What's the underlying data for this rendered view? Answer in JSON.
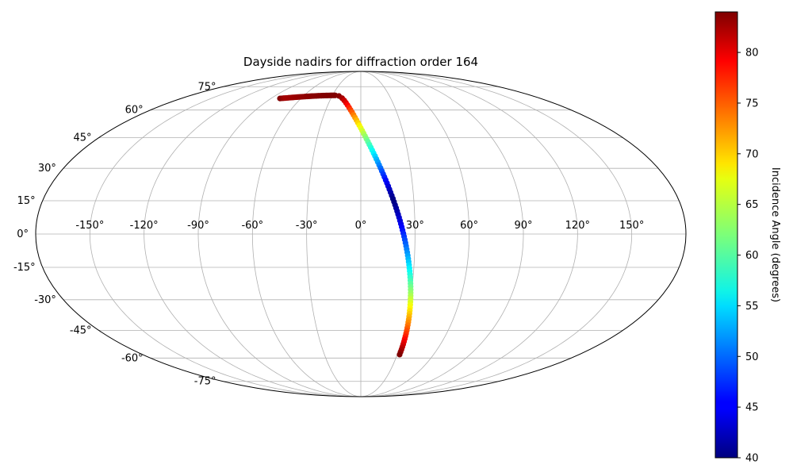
{
  "chart_data": {
    "type": "scatter",
    "projection": "mollweide",
    "title": "Dayside nadirs for diffraction order 164",
    "grid": true,
    "x_tick_labels": [
      "-150°",
      "-120°",
      "-90°",
      "-60°",
      "-30°",
      "0°",
      "30°",
      "60°",
      "90°",
      "120°",
      "150°"
    ],
    "x_ticks_deg": [
      -150,
      -120,
      -90,
      -60,
      -30,
      0,
      30,
      60,
      90,
      120,
      150
    ],
    "y_tick_labels": [
      "-75°",
      "-60°",
      "-45°",
      "-30°",
      "-15°",
      "0°",
      "15°",
      "30°",
      "45°",
      "60°",
      "75°"
    ],
    "y_ticks_deg": [
      -75,
      -60,
      -45,
      -30,
      -15,
      0,
      15,
      30,
      45,
      60,
      75
    ],
    "colorbar": {
      "label": "Incidence Angle (degrees)",
      "vmin": 40,
      "vmax": 84,
      "colormap": "jet",
      "tick_labels": [
        "40",
        "45",
        "50",
        "55",
        "60",
        "65",
        "70",
        "75",
        "80"
      ],
      "ticks": [
        40,
        45,
        50,
        55,
        60,
        65,
        70,
        75,
        80
      ]
    },
    "track": {
      "lon_start": -81,
      "lon_turn": -26,
      "lon_end": 32,
      "lat_start": 67,
      "lat_max": 69,
      "lat_end": -58,
      "point_count": 125,
      "incidence_min": 40,
      "incidence_max": 84,
      "incidence_min_at_lat": 15
    }
  }
}
